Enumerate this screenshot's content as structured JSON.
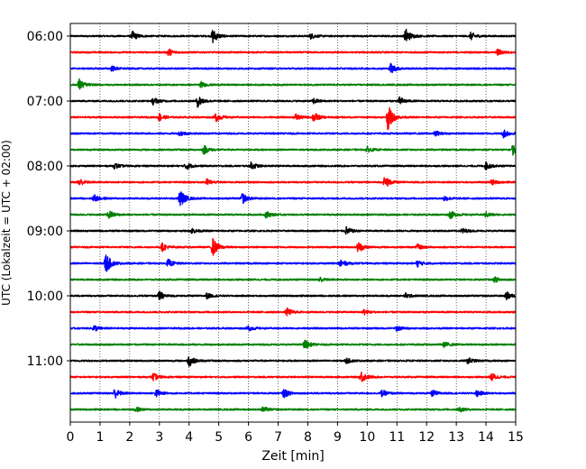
{
  "chart_data": {
    "type": "line",
    "title": "",
    "xlabel": "Zeit  [min]",
    "ylabel": "UTC (Lokalzeit = UTC + 02:00)",
    "xlim": [
      0,
      15
    ],
    "x_ticks": [
      0,
      1,
      2,
      3,
      4,
      5,
      6,
      7,
      8,
      9,
      10,
      11,
      12,
      13,
      14,
      15
    ],
    "y_tick_labels": [
      "06:00",
      "07:00",
      "08:00",
      "09:00",
      "10:00",
      "11:00"
    ],
    "y_tick_trace_index": [
      0,
      4,
      8,
      12,
      16,
      20
    ],
    "trace_interval_min": 15,
    "grid": "vertical-dotted",
    "colors": [
      "#000000",
      "#ff0000",
      "#0000ff",
      "#008000"
    ],
    "traces": [
      {
        "start": "06:00",
        "color": "#000000",
        "events": [
          [
            2.1,
            0.35
          ],
          [
            4.8,
            0.55
          ],
          [
            8.1,
            0.2
          ],
          [
            11.3,
            0.6
          ],
          [
            13.5,
            0.3
          ]
        ]
      },
      {
        "start": "06:15",
        "color": "#ff0000",
        "events": [
          [
            3.3,
            0.3
          ],
          [
            14.4,
            0.25
          ]
        ]
      },
      {
        "start": "06:30",
        "color": "#0000ff",
        "events": [
          [
            1.4,
            0.2
          ],
          [
            10.8,
            0.4
          ]
        ]
      },
      {
        "start": "06:45",
        "color": "#008000",
        "events": [
          [
            0.3,
            0.45
          ],
          [
            4.4,
            0.2
          ]
        ]
      },
      {
        "start": "07:00",
        "color": "#000000",
        "events": [
          [
            2.8,
            0.3
          ],
          [
            4.3,
            0.5
          ],
          [
            8.2,
            0.2
          ],
          [
            11.1,
            0.3
          ]
        ]
      },
      {
        "start": "07:15",
        "color": "#ff0000",
        "events": [
          [
            3.0,
            0.3
          ],
          [
            4.9,
            0.35
          ],
          [
            7.6,
            0.25
          ],
          [
            8.2,
            0.4
          ],
          [
            10.7,
            1.0
          ]
        ]
      },
      {
        "start": "07:30",
        "color": "#0000ff",
        "events": [
          [
            3.7,
            0.2
          ],
          [
            12.3,
            0.2
          ],
          [
            14.6,
            0.35
          ]
        ]
      },
      {
        "start": "07:45",
        "color": "#008000",
        "events": [
          [
            4.5,
            0.35
          ],
          [
            10.0,
            0.2
          ],
          [
            14.9,
            0.4
          ]
        ]
      },
      {
        "start": "08:00",
        "color": "#000000",
        "events": [
          [
            1.5,
            0.2
          ],
          [
            3.9,
            0.3
          ],
          [
            6.1,
            0.3
          ],
          [
            14.0,
            0.3
          ]
        ]
      },
      {
        "start": "08:15",
        "color": "#ff0000",
        "events": [
          [
            0.3,
            0.3
          ],
          [
            4.6,
            0.25
          ],
          [
            10.6,
            0.5
          ],
          [
            14.2,
            0.2
          ]
        ]
      },
      {
        "start": "08:30",
        "color": "#0000ff",
        "events": [
          [
            0.8,
            0.3
          ],
          [
            3.7,
            0.7
          ],
          [
            5.8,
            0.4
          ],
          [
            12.6,
            0.2
          ]
        ]
      },
      {
        "start": "08:45",
        "color": "#008000",
        "events": [
          [
            1.3,
            0.35
          ],
          [
            6.6,
            0.25
          ],
          [
            12.8,
            0.3
          ],
          [
            14.0,
            0.2
          ]
        ]
      },
      {
        "start": "09:00",
        "color": "#000000",
        "events": [
          [
            4.1,
            0.2
          ],
          [
            9.3,
            0.3
          ],
          [
            13.2,
            0.2
          ]
        ]
      },
      {
        "start": "09:15",
        "color": "#ff0000",
        "events": [
          [
            3.1,
            0.3
          ],
          [
            4.8,
            0.7
          ],
          [
            9.7,
            0.45
          ],
          [
            11.7,
            0.2
          ]
        ]
      },
      {
        "start": "09:30",
        "color": "#0000ff",
        "events": [
          [
            1.2,
            0.8
          ],
          [
            3.3,
            0.3
          ],
          [
            9.1,
            0.35
          ],
          [
            11.7,
            0.25
          ]
        ]
      },
      {
        "start": "09:45",
        "color": "#008000",
        "events": [
          [
            8.4,
            0.2
          ],
          [
            14.3,
            0.2
          ]
        ]
      },
      {
        "start": "10:00",
        "color": "#000000",
        "events": [
          [
            3.0,
            0.35
          ],
          [
            4.6,
            0.2
          ],
          [
            11.3,
            0.2
          ],
          [
            14.7,
            0.3
          ]
        ]
      },
      {
        "start": "10:15",
        "color": "#ff0000",
        "events": [
          [
            7.3,
            0.3
          ],
          [
            9.9,
            0.2
          ]
        ]
      },
      {
        "start": "10:30",
        "color": "#0000ff",
        "events": [
          [
            0.8,
            0.25
          ],
          [
            6.0,
            0.2
          ],
          [
            11.0,
            0.2
          ]
        ]
      },
      {
        "start": "10:45",
        "color": "#008000",
        "events": [
          [
            7.9,
            0.35
          ],
          [
            12.6,
            0.2
          ]
        ]
      },
      {
        "start": "11:00",
        "color": "#000000",
        "events": [
          [
            4.0,
            0.45
          ],
          [
            9.3,
            0.2
          ],
          [
            13.4,
            0.25
          ]
        ]
      },
      {
        "start": "11:15",
        "color": "#ff0000",
        "events": [
          [
            2.8,
            0.3
          ],
          [
            9.8,
            0.45
          ],
          [
            14.2,
            0.3
          ]
        ]
      },
      {
        "start": "11:30",
        "color": "#0000ff",
        "events": [
          [
            1.5,
            0.4
          ],
          [
            2.9,
            0.3
          ],
          [
            7.2,
            0.35
          ],
          [
            10.5,
            0.25
          ],
          [
            12.2,
            0.25
          ],
          [
            13.7,
            0.25
          ]
        ]
      },
      {
        "start": "11:45",
        "color": "#008000",
        "events": [
          [
            2.2,
            0.2
          ],
          [
            6.5,
            0.2
          ],
          [
            13.1,
            0.2
          ]
        ]
      }
    ]
  }
}
